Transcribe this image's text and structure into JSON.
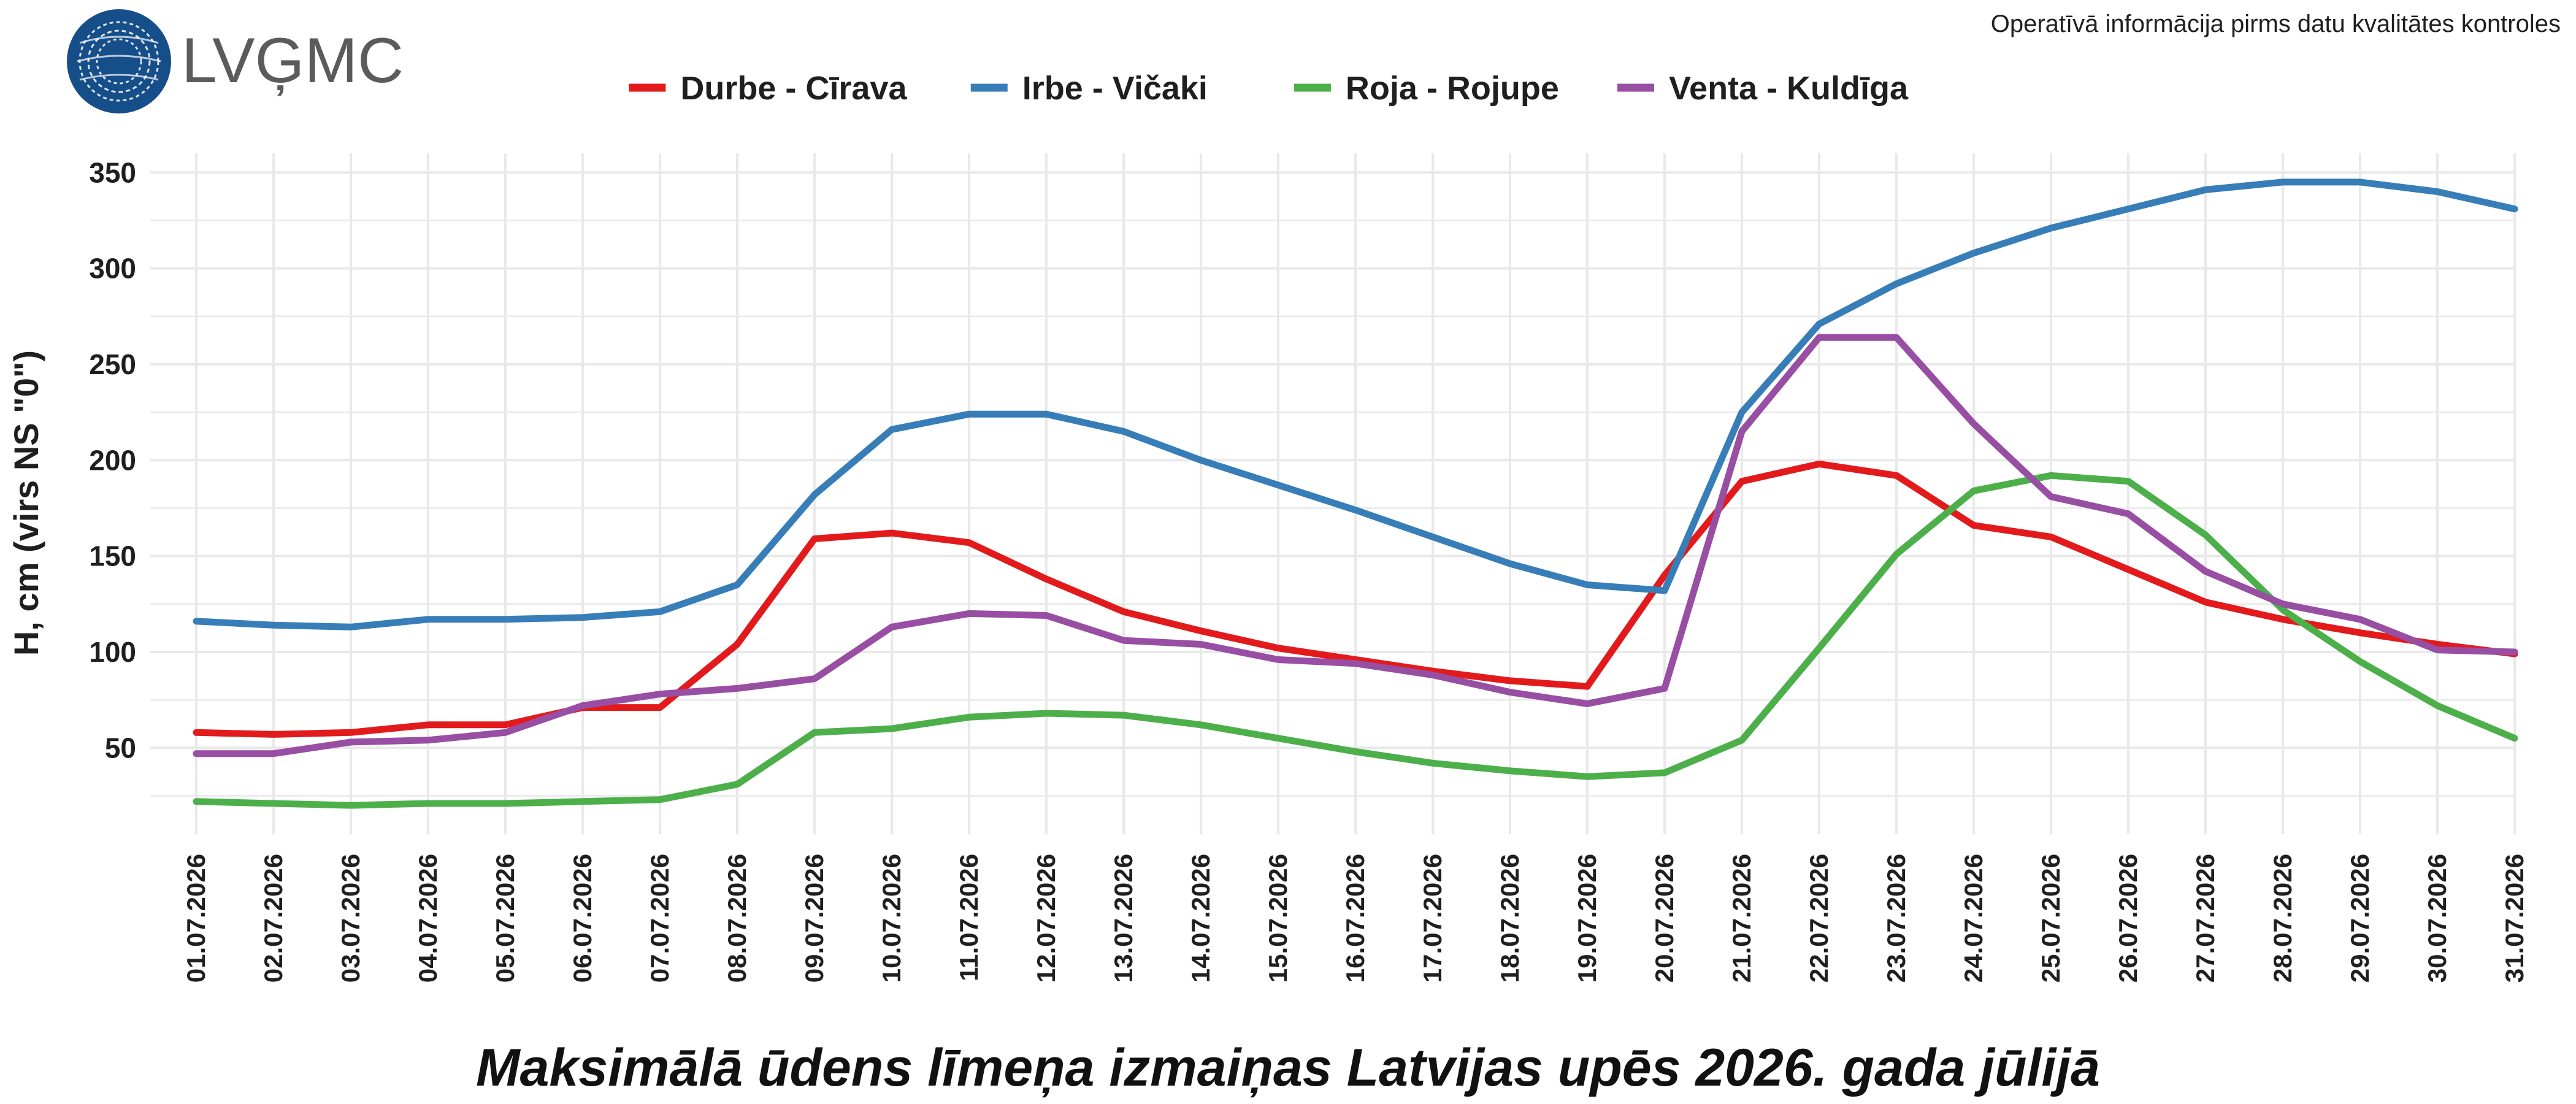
{
  "header": {
    "logo_text": "LVĢMC",
    "notice": "Operatīvā informācija pirms datu kvalitātes kontroles"
  },
  "colors": {
    "background": "#ffffff",
    "grid": "#e9e9e9",
    "logo_blue": "#164e8a",
    "logo_text": "#5b5b5b",
    "text": "#1f1f1f"
  },
  "chart_data": {
    "type": "line",
    "title": "Maksimālā ūdens līmeņa izmaiņas Latvijas upēs 2026. gada jūlijā",
    "xlabel": "",
    "ylabel": "H, cm (virs NS \"0\")",
    "ylim": [
      5,
      360
    ],
    "yticks": [
      50,
      100,
      150,
      200,
      250,
      300,
      350
    ],
    "grid": true,
    "legend_position": "top-center",
    "x": [
      "01.07.2026",
      "02.07.2026",
      "03.07.2026",
      "04.07.2026",
      "05.07.2026",
      "06.07.2026",
      "07.07.2026",
      "08.07.2026",
      "09.07.2026",
      "10.07.2026",
      "11.07.2026",
      "12.07.2026",
      "13.07.2026",
      "14.07.2026",
      "15.07.2026",
      "16.07.2026",
      "17.07.2026",
      "18.07.2026",
      "19.07.2026",
      "20.07.2026",
      "21.07.2026",
      "22.07.2026",
      "23.07.2026",
      "24.07.2026",
      "25.07.2026",
      "26.07.2026",
      "27.07.2026",
      "28.07.2026",
      "29.07.2026",
      "30.07.2026",
      "31.07.2026"
    ],
    "series": [
      {
        "name": "Durbe - Cīrava",
        "color": "#e31a1c",
        "values": [
          58,
          57,
          58,
          62,
          62,
          71,
          71,
          104,
          159,
          162,
          157,
          138,
          121,
          111,
          102,
          96,
          90,
          85,
          82,
          140,
          189,
          198,
          192,
          166,
          160,
          143,
          126,
          117,
          110,
          104,
          99
        ]
      },
      {
        "name": "Irbe - Vičaki",
        "color": "#377eb8",
        "values": [
          116,
          114,
          113,
          117,
          117,
          118,
          121,
          135,
          182,
          216,
          224,
          224,
          215,
          200,
          187,
          174,
          160,
          146,
          135,
          132,
          225,
          271,
          292,
          308,
          321,
          331,
          341,
          345,
          345,
          340,
          331
        ]
      },
      {
        "name": "Roja - Rojupe",
        "color": "#4daf4a",
        "values": [
          22,
          21,
          20,
          21,
          21,
          22,
          23,
          31,
          58,
          60,
          66,
          68,
          67,
          62,
          55,
          48,
          42,
          38,
          35,
          37,
          54,
          102,
          151,
          184,
          192,
          189,
          161,
          122,
          95,
          72,
          55
        ]
      },
      {
        "name": "Venta - Kuldīga",
        "color": "#984ea3",
        "values": [
          47,
          47,
          53,
          54,
          58,
          72,
          78,
          81,
          86,
          113,
          120,
          119,
          106,
          104,
          96,
          94,
          88,
          79,
          73,
          81,
          215,
          264,
          264,
          219,
          181,
          172,
          142,
          125,
          117,
          101,
          100
        ]
      }
    ]
  }
}
